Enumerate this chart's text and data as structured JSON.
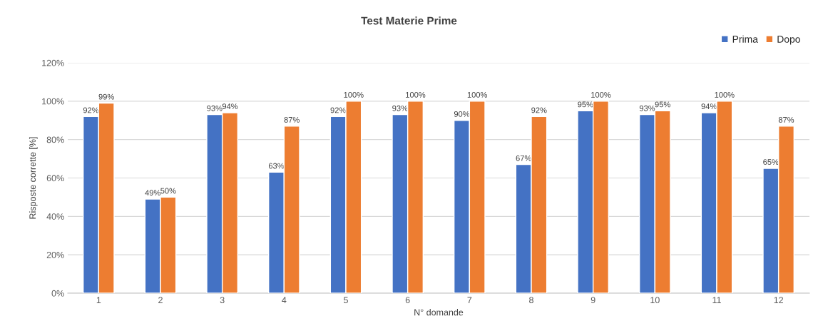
{
  "chart_data": {
    "type": "bar",
    "title": "Test Materie Prime",
    "xlabel": "N° domande",
    "ylabel": "Risposte corrette [%]",
    "categories": [
      "1",
      "2",
      "3",
      "4",
      "5",
      "6",
      "7",
      "8",
      "9",
      "10",
      "11",
      "12"
    ],
    "series": [
      {
        "name": "Prima",
        "color": "#4472c4",
        "values": [
          92,
          49,
          93,
          63,
          92,
          93,
          90,
          67,
          95,
          93,
          94,
          65
        ],
        "value_labels": [
          "92%",
          "49%",
          "93%",
          "63%",
          "92%",
          "93%",
          "90%",
          "67%",
          "95%",
          "93%",
          "94%",
          "65%"
        ]
      },
      {
        "name": "Dopo",
        "color": "#ed7d31",
        "values": [
          99,
          50,
          94,
          87,
          100,
          100,
          100,
          92,
          100,
          95,
          100,
          87
        ],
        "value_labels": [
          "99%",
          "50%",
          "94%",
          "87%",
          "100%",
          "100%",
          "100%",
          "92%",
          "100%",
          "95%",
          "100%",
          "87%"
        ]
      }
    ],
    "ylim": [
      0,
      120
    ],
    "yticks": [
      {
        "value": 0,
        "label": "0%"
      },
      {
        "value": 20,
        "label": "20%"
      },
      {
        "value": 40,
        "label": "40%"
      },
      {
        "value": 60,
        "label": "60%"
      },
      {
        "value": 80,
        "label": "80%"
      },
      {
        "value": 100,
        "label": "100%"
      },
      {
        "value": 120,
        "label": "120%"
      }
    ],
    "grid": "y",
    "legend": "top right"
  }
}
